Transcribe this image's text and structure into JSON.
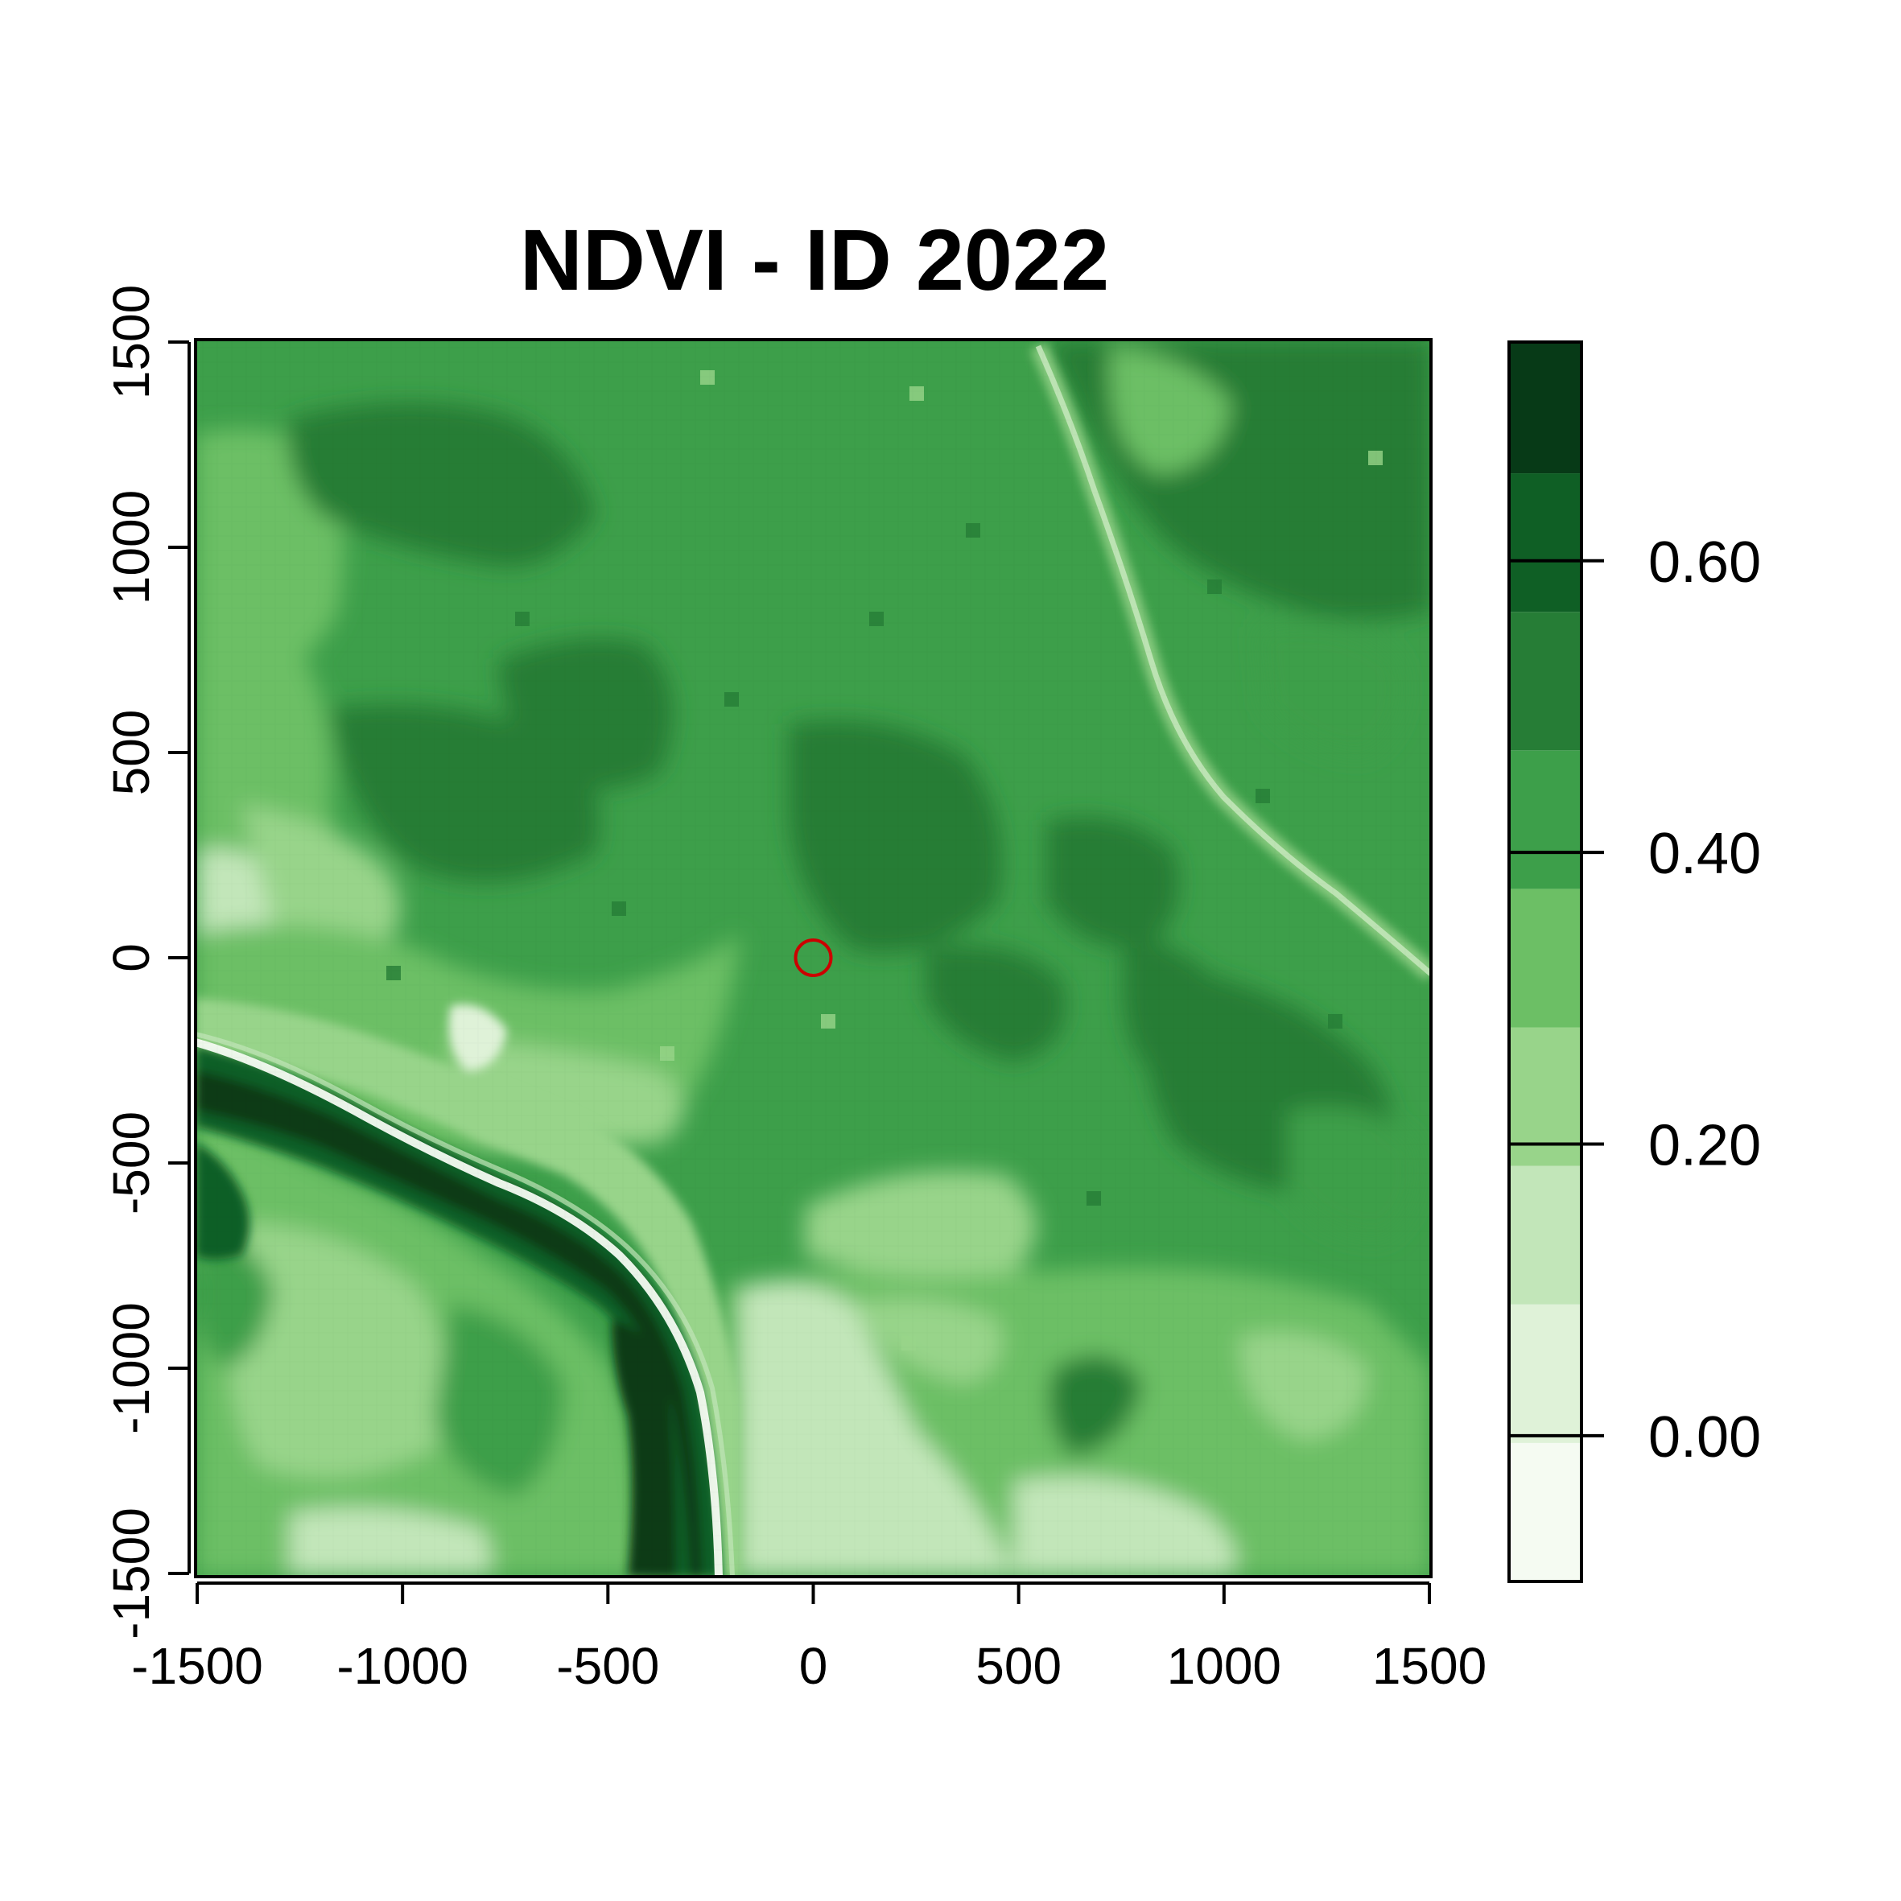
{
  "chart_data": {
    "type": "heatmap",
    "title": "NDVI - ID 2022",
    "xlabel": "",
    "ylabel": "",
    "xlim": [
      -1500,
      1500
    ],
    "ylim": [
      -1500,
      1500
    ],
    "x_ticks": [
      -1500,
      -1000,
      -500,
      0,
      500,
      1000,
      1500
    ],
    "x_tick_labels": [
      "-1500",
      "-1000",
      "-500",
      "0",
      "500",
      "1000",
      "1500"
    ],
    "y_ticks": [
      -1500,
      -1000,
      -500,
      0,
      500,
      1000,
      1500
    ],
    "y_tick_labels": [
      "-1500",
      "-1000",
      "-500",
      "0",
      "500",
      "1000",
      "1500"
    ],
    "marker": {
      "shape": "circle",
      "x": 0,
      "y": 0,
      "color": "#cc0000"
    },
    "colorbar": {
      "breaks": [
        -0.1,
        -0.05,
        0.0,
        0.05,
        0.1,
        0.15,
        0.2,
        0.25,
        0.3,
        0.35,
        0.4,
        0.45,
        0.5,
        0.55,
        0.6,
        0.65,
        0.7,
        0.75,
        0.8
      ],
      "range": [
        -0.1,
        0.75
      ],
      "bands": [
        {
          "min": -0.1,
          "max": -0.005,
          "color": "#f5fbf2"
        },
        {
          "min": -0.005,
          "max": 0.09,
          "color": "#dff2d8"
        },
        {
          "min": 0.09,
          "max": 0.185,
          "color": "#c2e6b9"
        },
        {
          "min": 0.185,
          "max": 0.28,
          "color": "#98d48a"
        },
        {
          "min": 0.28,
          "max": 0.375,
          "color": "#6cbf65"
        },
        {
          "min": 0.375,
          "max": 0.47,
          "color": "#3d9f4a"
        },
        {
          "min": 0.47,
          "max": 0.565,
          "color": "#267d36"
        },
        {
          "min": 0.565,
          "max": 0.66,
          "color": "#0f5f25"
        },
        {
          "min": 0.66,
          "max": 0.75,
          "color": "#073a17"
        }
      ],
      "ticks": [
        0.0,
        0.2,
        0.4,
        0.6
      ],
      "tick_labels": [
        "0.00",
        "0.20",
        "0.40",
        "0.60"
      ]
    }
  }
}
